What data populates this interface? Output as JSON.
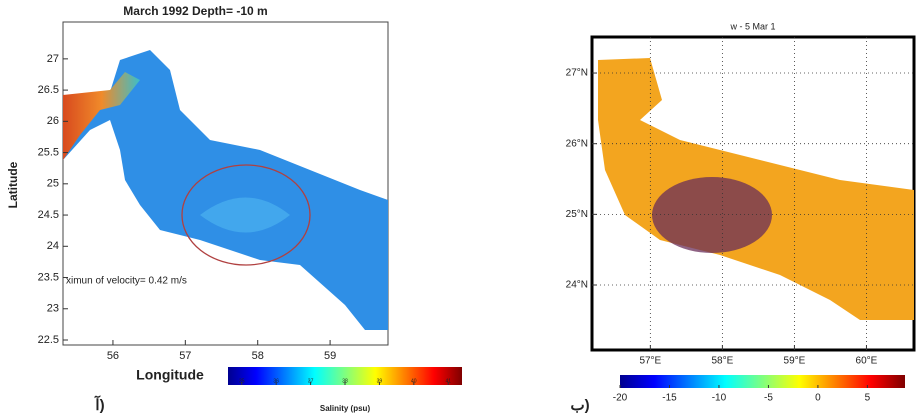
{
  "panels": [
    {
      "title": "March 1992   Depth=  -10 m",
      "label": "آ)",
      "xlabel": "Longitude",
      "ylabel": "Latitude",
      "annotation": "ximun of velocity= 0.42 m/s",
      "xlim": [
        55.31,
        59.8
      ],
      "ylim": [
        22.42,
        27.59
      ],
      "xticks": [
        56,
        57,
        58,
        59
      ],
      "yticks": [
        27,
        26.5,
        26,
        25.5,
        25,
        24.5,
        24,
        23.5,
        23,
        22.5
      ],
      "colorbar": {
        "label": "Salinity (psu)",
        "lim": [
          34.6,
          41.4
        ],
        "ticks": [
          35,
          36,
          37,
          38,
          39,
          40,
          41
        ]
      }
    },
    {
      "title": "w - 5 Mar 1",
      "label": "ب)",
      "grid": true,
      "xlim": [
        56.19,
        60.66
      ],
      "ylim": [
        23.08,
        27.51
      ],
      "xticks": [
        {
          "value": 57,
          "label": "57°E"
        },
        {
          "value": 58,
          "label": "58°E"
        },
        {
          "value": 59,
          "label": "59°E"
        },
        {
          "value": 60,
          "label": "60°E"
        }
      ],
      "yticks": [
        {
          "value": 27,
          "label": "27°N"
        },
        {
          "value": 26,
          "label": "26°N"
        },
        {
          "value": 25,
          "label": "25°N"
        },
        {
          "value": 24,
          "label": "24°N"
        }
      ],
      "colorbar": {
        "lim": [
          -20,
          8.8
        ],
        "ticks": [
          -20,
          -15,
          -10,
          -5,
          0,
          5
        ]
      }
    }
  ]
}
